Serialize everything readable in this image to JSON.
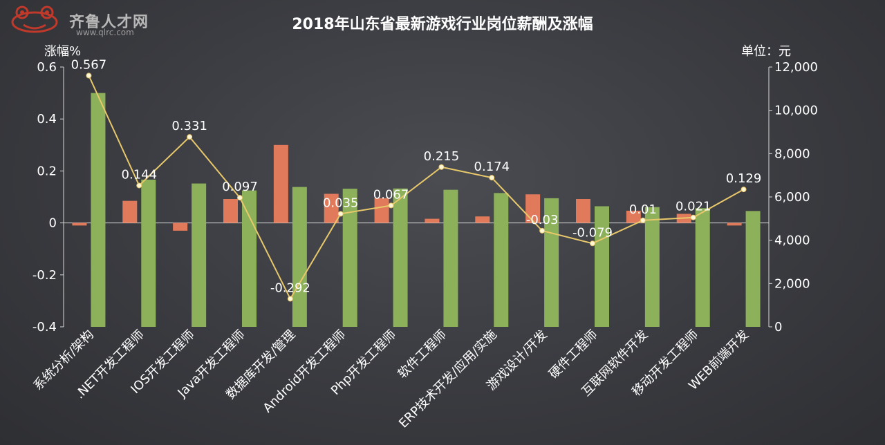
{
  "logo": {
    "text": "齐鲁人才网",
    "sub": "www.qlrc.com",
    "reg": "®"
  },
  "chart_data": {
    "type": "bar",
    "title": "2018年山东省最新游戏行业岗位薪酬及涨幅",
    "ylabel_left": "涨幅%",
    "ylabel_right": "单位：元",
    "ylim_left": [
      -0.4,
      0.6
    ],
    "ylim_right": [
      0,
      12000
    ],
    "yticks_left": [
      "-0.4",
      "-0.2",
      "0",
      "0.2",
      "0.4",
      "0.6"
    ],
    "yticks_right": [
      "0",
      "2,000",
      "4,000",
      "6,000",
      "8,000",
      "10,000",
      "12,000"
    ],
    "categories": [
      "系统分析/架构",
      ".NET开发工程师",
      "IOS开发工程师",
      "Java开发工程师",
      "数据库开发/管理",
      "Android开发工程师",
      "Php开发工程师",
      "软件工程师",
      "ERP技术开发/应用/实施",
      "游戏设计/开发",
      "硬件工程师",
      "互联网软件开发",
      "移动开发工程师",
      "WEB前端开发"
    ],
    "series": [
      {
        "axis": "left",
        "values": [
          -0.01,
          0.085,
          -0.03,
          0.092,
          0.3,
          0.112,
          0.095,
          0.016,
          0.025,
          0.11,
          0.092,
          0.047,
          0.035,
          -0.01
        ]
      },
      {
        "axis": "right",
        "values": [
          10800,
          6800,
          6620,
          6300,
          6460,
          6380,
          6390,
          6330,
          6180,
          5940,
          5570,
          5530,
          5480,
          5350
        ]
      },
      {
        "axis": "left",
        "values": [
          0.567,
          0.144,
          0.331,
          0.097,
          -0.292,
          0.035,
          0.067,
          0.215,
          0.174,
          -0.03,
          -0.079,
          0.01,
          0.021,
          0.129
        ]
      }
    ],
    "line_labels": [
      "0.567",
      "0.144",
      "0.331",
      "0.097",
      "-0.292",
      "0.035",
      "0.067",
      "0.215",
      "0.174",
      "-0.03",
      "-0.079",
      "0.01",
      "0.021",
      "0.129"
    ],
    "colors": {
      "bar1": "#e07a5a",
      "bar2": "#8db05a",
      "line": "#e8c86a",
      "point": "#fff6d8"
    }
  }
}
